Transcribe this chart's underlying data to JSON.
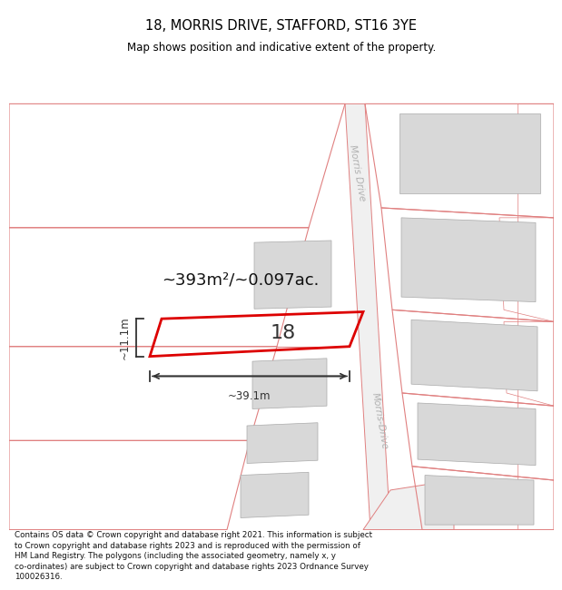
{
  "title": "18, MORRIS DRIVE, STAFFORD, ST16 3YE",
  "subtitle": "Map shows position and indicative extent of the property.",
  "area_text": "~393m²/~0.097ac.",
  "width_label": "~39.1m",
  "height_label": "~11.1m",
  "property_number": "18",
  "footer_line1": "Contains OS data © Crown copyright and database right 2021. This information is subject",
  "footer_line2": "to Crown copyright and database rights 2023 and is reproduced with the permission of",
  "footer_line3": "HM Land Registry. The polygons (including the associated geometry, namely x, y",
  "footer_line4": "co-ordinates) are subject to Crown copyright and database rights 2023 Ordnance Survey",
  "footer_line5": "100026316.",
  "road_label_top": "Morris Drive",
  "road_label_bottom": "Morris-Drive",
  "bg_color": "#ffffff",
  "plot_outline_color": "#dd0000",
  "other_outline_color": "#e08080",
  "building_fill": "#d8d8d8",
  "road_color": "#f0f0f0",
  "dim_line_color": "#333333",
  "title_color": "#000000",
  "number_color": "#333333",
  "area_color": "#111111"
}
